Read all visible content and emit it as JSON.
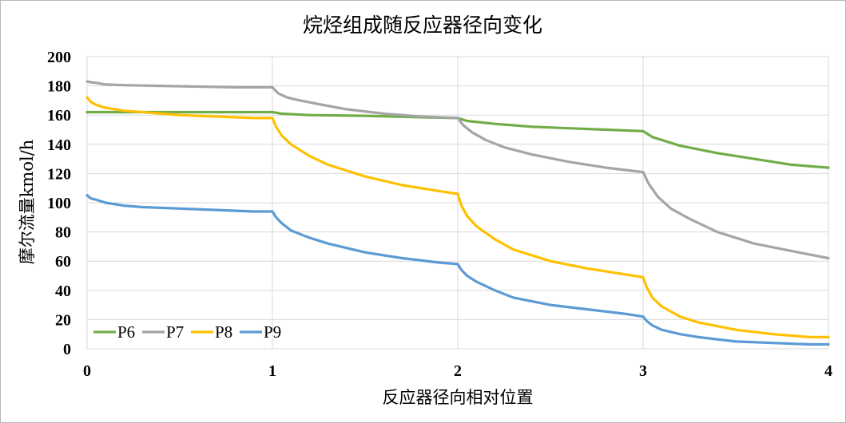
{
  "chart_data": {
    "type": "line",
    "title": "烷烃组成随反应器径向变化",
    "xlabel": "反应器径向相对位置",
    "ylabel": "摩尔流量kmol/h",
    "xlim": [
      0,
      4
    ],
    "ylim": [
      0,
      200
    ],
    "x_ticks": [
      "0",
      "1",
      "2",
      "3",
      "4"
    ],
    "y_ticks": [
      "0",
      "20",
      "40",
      "60",
      "80",
      "100",
      "120",
      "140",
      "160",
      "180",
      "200"
    ],
    "grid": "horizontal",
    "legend_position": "bottom-left",
    "series": [
      {
        "name": "P6",
        "color": "#70ad47",
        "x": [
          0,
          0.1,
          0.3,
          0.5,
          0.7,
          0.9,
          1.0,
          1.05,
          1.2,
          1.5,
          1.8,
          2.0,
          2.05,
          2.2,
          2.4,
          2.6,
          2.8,
          3.0,
          3.05,
          3.2,
          3.4,
          3.6,
          3.8,
          4.0
        ],
        "y": [
          162,
          162,
          162,
          162,
          162,
          162,
          162,
          161,
          160,
          159.5,
          158.5,
          158,
          156,
          154,
          152,
          151,
          150,
          149,
          145,
          139,
          134,
          130,
          126,
          124
        ]
      },
      {
        "name": "P7",
        "color": "#a5a5a5",
        "x": [
          0,
          0.02,
          0.05,
          0.1,
          0.2,
          0.4,
          0.6,
          0.8,
          1.0,
          1.03,
          1.08,
          1.15,
          1.25,
          1.4,
          1.6,
          1.8,
          2.0,
          2.03,
          2.08,
          2.15,
          2.25,
          2.4,
          2.6,
          2.8,
          3.0,
          3.03,
          3.08,
          3.15,
          3.25,
          3.4,
          3.6,
          3.8,
          4.0
        ],
        "y": [
          183,
          182.5,
          182,
          181,
          180.5,
          180,
          179.5,
          179,
          179,
          175,
          172,
          170,
          167.5,
          164,
          161,
          159,
          158,
          153,
          148,
          143,
          138,
          133,
          128,
          124,
          121,
          113,
          104,
          96,
          89,
          80,
          72,
          67,
          62
        ]
      },
      {
        "name": "P8",
        "color": "#ffc000",
        "x": [
          0,
          0.02,
          0.05,
          0.1,
          0.2,
          0.3,
          0.5,
          0.7,
          0.9,
          1.0,
          1.02,
          1.05,
          1.1,
          1.2,
          1.3,
          1.5,
          1.7,
          1.9,
          2.0,
          2.02,
          2.05,
          2.1,
          2.2,
          2.3,
          2.5,
          2.7,
          2.9,
          3.0,
          3.02,
          3.05,
          3.1,
          3.2,
          3.3,
          3.5,
          3.7,
          3.9,
          4.0
        ],
        "y": [
          172,
          169,
          167,
          165,
          163,
          162,
          160,
          159,
          158,
          158,
          152,
          146,
          140,
          132,
          126,
          118,
          112,
          108,
          106,
          98,
          91,
          84,
          75,
          68,
          60,
          55,
          51,
          49,
          42,
          35,
          29,
          22,
          18,
          13,
          10,
          8,
          8
        ]
      },
      {
        "name": "P9",
        "color": "#5b9bd5",
        "x": [
          0,
          0.02,
          0.05,
          0.1,
          0.2,
          0.3,
          0.5,
          0.7,
          0.9,
          1.0,
          1.02,
          1.05,
          1.1,
          1.2,
          1.3,
          1.5,
          1.7,
          1.9,
          2.0,
          2.02,
          2.05,
          2.1,
          2.2,
          2.3,
          2.5,
          2.7,
          2.9,
          3.0,
          3.02,
          3.05,
          3.1,
          3.2,
          3.3,
          3.5,
          3.7,
          3.9,
          4.0
        ],
        "y": [
          105,
          103,
          102,
          100,
          98,
          97,
          96,
          95,
          94,
          94,
          90,
          86,
          81,
          76,
          72,
          66,
          62,
          59,
          58,
          54,
          50,
          46,
          40,
          35,
          30,
          27,
          24,
          22,
          19,
          16,
          13,
          10,
          8,
          5,
          4,
          3,
          3
        ]
      }
    ]
  }
}
